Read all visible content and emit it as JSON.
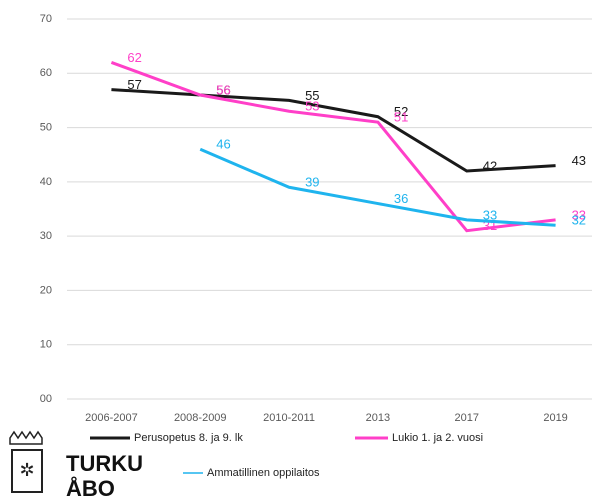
{
  "chart_data": {
    "type": "line",
    "categories": [
      "2006-2007",
      "2008-2009",
      "2010-2011",
      "2013",
      "2017",
      "2019"
    ],
    "series": [
      {
        "name": "Perusopetus 8. ja 9. lk",
        "color": "#1a1a1a",
        "values": [
          57,
          56,
          55,
          52,
          42,
          43
        ]
      },
      {
        "name": "Lukio 1. ja 2. vuosi",
        "color": "#ff3fc8",
        "values": [
          62,
          56,
          53,
          51,
          31,
          33
        ]
      },
      {
        "name": "Ammatillinen oppilaitos",
        "color": "#1fb4ee",
        "values": [
          null,
          46,
          39,
          36,
          33,
          32
        ]
      }
    ],
    "ylim": [
      0,
      70
    ],
    "yticks": [
      {
        "value": 0,
        "label": "00"
      },
      10,
      20,
      30,
      40,
      50,
      60,
      70
    ],
    "grid": true
  },
  "logo": {
    "line1": "TURKU",
    "line2": "ÅBO"
  }
}
